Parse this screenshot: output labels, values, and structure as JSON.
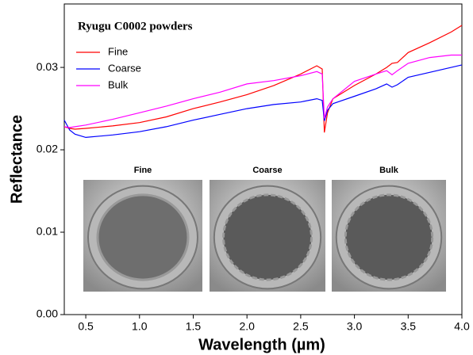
{
  "chart_data": {
    "type": "line",
    "annotation": "Ryugu C0002 powders",
    "x_label": "Wavelength (µm)",
    "y_label": "Reflectance",
    "x": [
      0.3,
      0.35,
      0.4,
      0.5,
      0.75,
      1.0,
      1.25,
      1.5,
      1.75,
      2.0,
      2.25,
      2.5,
      2.65,
      2.7,
      2.72,
      2.75,
      2.8,
      3.0,
      3.2,
      3.3,
      3.35,
      3.4,
      3.5,
      3.7,
      3.9,
      4.0
    ],
    "series": [
      {
        "name": "Fine",
        "color": "#ff0000",
        "values": [
          0.0228,
          0.0226,
          0.0225,
          0.0226,
          0.0229,
          0.0233,
          0.024,
          0.025,
          0.0258,
          0.0267,
          0.0278,
          0.0292,
          0.0302,
          0.0298,
          0.0221,
          0.0245,
          0.0262,
          0.0278,
          0.0292,
          0.03,
          0.0305,
          0.0306,
          0.0318,
          0.033,
          0.0343,
          0.0351
        ]
      },
      {
        "name": "Coarse",
        "color": "#0000ff",
        "values": [
          0.0236,
          0.0224,
          0.0219,
          0.0215,
          0.0218,
          0.0222,
          0.0228,
          0.0236,
          0.0243,
          0.025,
          0.0255,
          0.0258,
          0.0262,
          0.026,
          0.0235,
          0.0248,
          0.0256,
          0.0265,
          0.0274,
          0.028,
          0.0276,
          0.0279,
          0.0288,
          0.0294,
          0.03,
          0.0303
        ]
      },
      {
        "name": "Bulk",
        "color": "#ff00ff",
        "values": [
          0.0228,
          0.0227,
          0.0228,
          0.023,
          0.0237,
          0.0245,
          0.0253,
          0.0262,
          0.027,
          0.028,
          0.0284,
          0.029,
          0.0295,
          0.0292,
          0.0238,
          0.0252,
          0.0262,
          0.0283,
          0.0292,
          0.0296,
          0.0291,
          0.0296,
          0.0305,
          0.0312,
          0.0315,
          0.0315
        ]
      }
    ],
    "xlim": [
      0.3,
      4.0
    ],
    "ylim": [
      0,
      0.0377
    ],
    "xticks": [
      0.5,
      {
        "value": 1,
        "label": "1.0"
      },
      1.5,
      {
        "value": 2,
        "label": "2.0"
      },
      2.5,
      {
        "value": 3,
        "label": "3.0"
      },
      3.5,
      {
        "value": 4,
        "label": "4.0"
      }
    ],
    "yticks": [
      {
        "value": 0,
        "label": "0.00"
      },
      0.01,
      0.02,
      0.03
    ],
    "image_labels": [
      "Fine",
      "Coarse",
      "Bulk"
    ]
  }
}
